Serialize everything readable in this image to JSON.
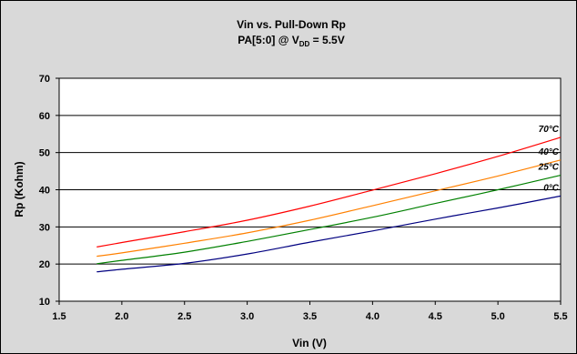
{
  "chart_data": {
    "type": "line",
    "title": "Vin vs. Pull-Down Rp",
    "subtitle": {
      "prefix": "PA[5:0] @ V",
      "subscript": "DD",
      "suffix": " = 5.5V"
    },
    "xlabel": "Vin (V)",
    "ylabel": "Rp (Kohm)",
    "xlim": [
      1.5,
      5.5
    ],
    "ylim": [
      10,
      70
    ],
    "x_ticks": [
      "1.5",
      "2.0",
      "2.5",
      "3.0",
      "3.5",
      "4.0",
      "4.5",
      "5.0",
      "5.5"
    ],
    "y_ticks": [
      "10",
      "20",
      "30",
      "40",
      "50",
      "60",
      "70"
    ],
    "grid": "horizontal",
    "legend": "inline labels at right end of lines",
    "x": [
      1.8,
      2.0,
      2.5,
      3.0,
      3.5,
      4.0,
      4.5,
      5.0,
      5.5
    ],
    "series": [
      {
        "name": "70°C",
        "color": "#ff0000",
        "values": [
          24.6,
          25.8,
          28.7,
          31.8,
          35.6,
          39.9,
          44.3,
          49.0,
          54.1
        ]
      },
      {
        "name": "40°C",
        "color": "#ff8000",
        "values": [
          22.1,
          23.0,
          25.6,
          28.4,
          31.8,
          35.7,
          39.7,
          43.7,
          48.0
        ]
      },
      {
        "name": "25°C",
        "color": "#008000",
        "values": [
          20.1,
          21.0,
          23.2,
          26.1,
          29.3,
          32.6,
          36.3,
          40.0,
          43.9
        ]
      },
      {
        "name": "0°C",
        "color": "#000080",
        "values": [
          17.9,
          18.6,
          20.2,
          22.7,
          25.9,
          28.9,
          32.1,
          35.1,
          38.3
        ]
      }
    ]
  }
}
